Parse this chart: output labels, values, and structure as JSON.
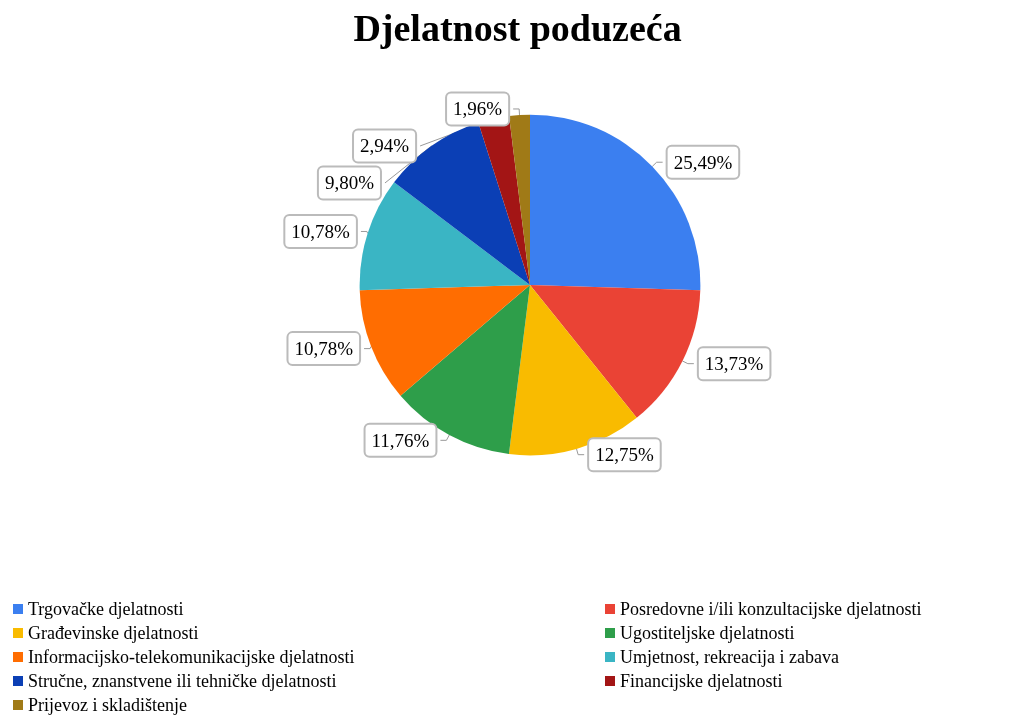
{
  "chart_data": {
    "type": "pie",
    "title": "Djelatnost poduzeća",
    "categories": [
      "Trgovačke djelatnosti",
      "Posredovne i/ili konzultacijske djelatnosti",
      "Građevinske djelatnosti",
      "Ugostiteljske djelatnosti",
      "Informacijsko-telekomunikacijske djelatnosti",
      "Umjetnost, rekreacija i zabava",
      "Stručne, znanstvene ili tehničke djelatnosti",
      "Financijske djelatnosti",
      "Prijevoz i skladištenje"
    ],
    "values": [
      25.49,
      13.73,
      12.75,
      11.76,
      10.78,
      10.78,
      9.8,
      2.94,
      1.96
    ],
    "value_labels": [
      "25,49%",
      "13,73%",
      "12,75%",
      "11,76%",
      "10,78%",
      "10,78%",
      "9,80%",
      "2,94%",
      "1,96%"
    ],
    "colors": [
      "#3b7ff0",
      "#ea4335",
      "#f9bb00",
      "#2e9e4a",
      "#ff6d01",
      "#3ab5c4",
      "#0b3fb5",
      "#a31515",
      "#a07a17"
    ],
    "legend": "bottom"
  }
}
